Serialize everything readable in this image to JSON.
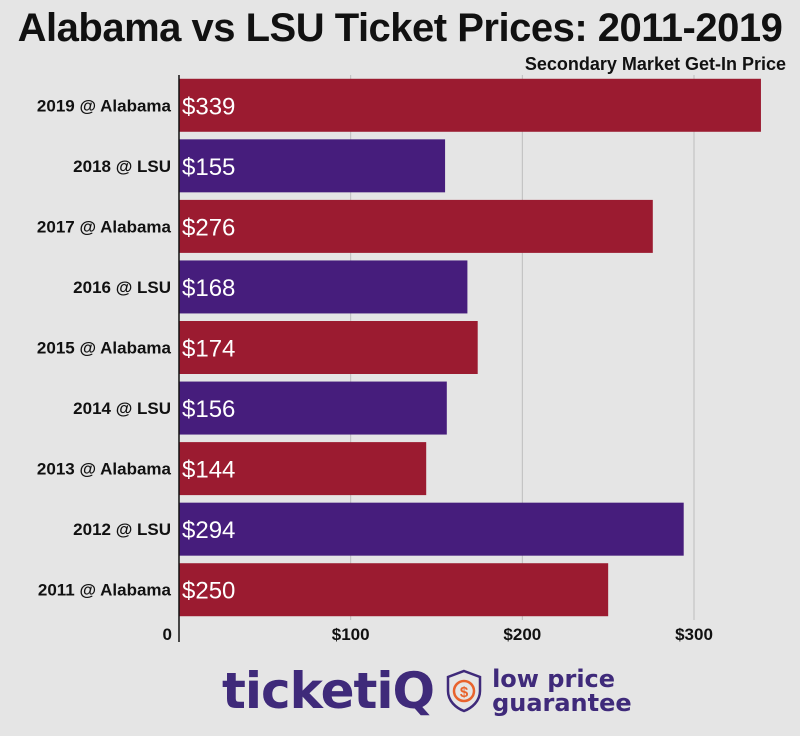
{
  "chart_data": {
    "type": "bar",
    "orientation": "horizontal",
    "title": "Alabama vs LSU Ticket Prices: 2011-2019",
    "subtitle": "Secondary Market Get-In Price",
    "categories": [
      "2019 @ Alabama",
      "2018 @ LSU",
      "2017 @ Alabama",
      "2016 @ LSU",
      "2015 @ Alabama",
      "2014 @ LSU",
      "2013 @ Alabama",
      "2012 @ LSU",
      "2011 @ Alabama"
    ],
    "values": [
      339,
      155,
      276,
      168,
      174,
      156,
      144,
      294,
      250
    ],
    "value_labels": [
      "$339",
      "$155",
      "$276",
      "$168",
      "$174",
      "$156",
      "$144",
      "$294",
      "$250"
    ],
    "bar_colors": [
      "#9b1b30",
      "#461d7c",
      "#9b1b30",
      "#461d7c",
      "#9b1b30",
      "#461d7c",
      "#9b1b30",
      "#461d7c",
      "#9b1b30"
    ],
    "xticks": [
      0,
      100,
      200,
      300
    ],
    "xtick_labels": [
      "0",
      "$100",
      "$200",
      "$300"
    ],
    "xlim": [
      0,
      355
    ],
    "grid": true
  },
  "logo": {
    "brand_text": "ticketi",
    "brand_q": "Q",
    "slogan_line1": "low price",
    "slogan_line2": "guarantee",
    "badge_symbol": "$",
    "colors": {
      "brand": "#3f2a7a",
      "accent": "#e8622c"
    }
  }
}
